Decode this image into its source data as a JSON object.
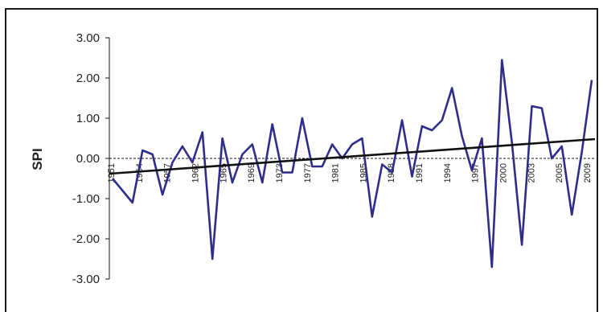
{
  "chart_data": {
    "type": "line",
    "title": "",
    "xlabel": "",
    "ylabel": "SPI",
    "ylim": [
      -3,
      3
    ],
    "y_ticks": [
      "3.00",
      "2.00",
      "1.00",
      "0.00",
      "-1.00",
      "-2.00",
      "-3.00"
    ],
    "x_tick_labels": [
      "1951",
      "1954",
      "1957",
      "1962",
      "1965",
      "1969",
      "1973",
      "1977",
      "1981",
      "1985",
      "1988",
      "1991",
      "1994",
      "1997",
      "2000",
      "2003",
      "2005",
      "2009"
    ],
    "xlim": [
      1951,
      2011
    ],
    "grid": false,
    "legend": "none",
    "colors": {
      "series": "#2e2e8a",
      "trend": "#111111",
      "axis": "#111111"
    },
    "series": [
      {
        "x": [
          1951,
          1952,
          1953,
          1954,
          1955,
          1956,
          1957,
          1958,
          1959,
          1960,
          1961,
          1962,
          1963,
          1964,
          1965,
          1966,
          1967,
          1968,
          1969,
          1970,
          1971,
          1972,
          1973,
          1974,
          1975,
          1976,
          1977,
          1978,
          1979,
          1980,
          1981,
          1982,
          1983,
          1984,
          1985,
          1986,
          1987,
          1988,
          1989,
          1990,
          1991,
          1992,
          1993,
          1994,
          1995,
          1996,
          1997,
          1998,
          1999,
          2000,
          2001,
          2002,
          2003,
          2004,
          2005,
          2006,
          2007,
          2008,
          2009,
          2010,
          2011
        ],
        "values": [
          -0.5,
          -0.8,
          -1.1,
          0.2,
          0.1,
          -0.9,
          -0.1,
          0.3,
          -0.1,
          0.65,
          -2.5,
          0.5,
          -0.6,
          0.1,
          0.35,
          -0.6,
          0.85,
          -0.35,
          -0.35,
          1.0,
          -0.2,
          -0.2,
          0.35,
          0.0,
          0.35,
          0.5,
          -1.45,
          -0.15,
          -0.35,
          0.95,
          -0.45,
          0.8,
          0.7,
          0.95,
          1.75,
          0.55,
          -0.3,
          0.5,
          -2.7,
          2.45,
          0.4,
          -2.15,
          1.3,
          1.25,
          0.0,
          0.3,
          -1.4,
          0.15,
          1.95,
          null,
          null,
          null,
          null,
          null,
          null,
          null,
          null,
          null,
          null,
          null,
          null
        ]
      },
      {
        "x": [
          1951,
          2011
        ],
        "values": [
          -0.38,
          0.48
        ]
      }
    ]
  }
}
